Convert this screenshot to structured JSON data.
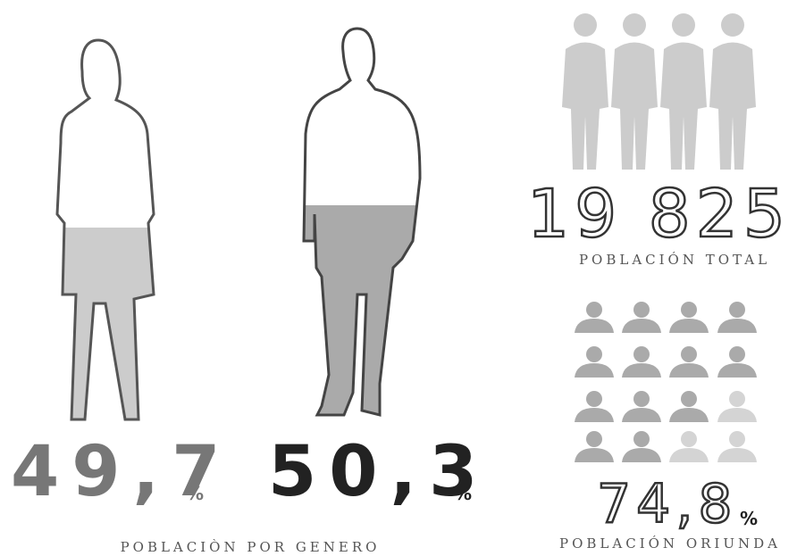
{
  "gender": {
    "female": {
      "value": "49,7",
      "unit": "%"
    },
    "male": {
      "value": "50,3",
      "unit": "%"
    },
    "caption": "POBLACIÒN POR GENERO"
  },
  "total": {
    "value": "19 825",
    "caption": "POBLACIÓN TOTAL"
  },
  "native": {
    "value": "74,8",
    "unit": "%",
    "caption": "POBLACIÓN ORIUNDA"
  }
}
